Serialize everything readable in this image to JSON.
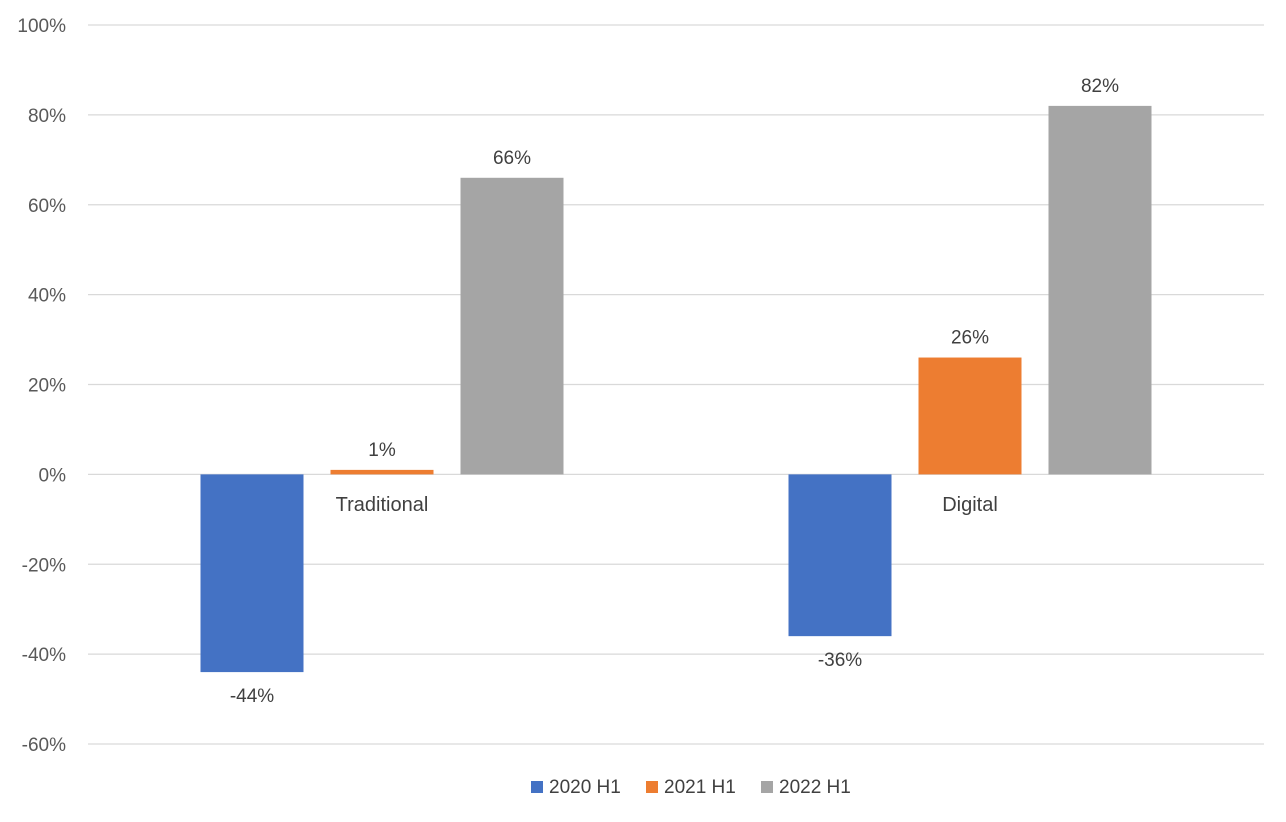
{
  "chart_data": {
    "type": "bar",
    "categories": [
      "Traditional",
      "Digital"
    ],
    "series": [
      {
        "name": "2020 H1",
        "values": [
          -44,
          -36
        ],
        "color": "#4472C4"
      },
      {
        "name": "2021 H1",
        "values": [
          1,
          26
        ],
        "color": "#ED7D31"
      },
      {
        "name": "2022 H1",
        "values": [
          66,
          82
        ],
        "color": "#A5A5A5"
      }
    ],
    "data_labels": [
      [
        "-44%",
        "-36%"
      ],
      [
        "1%",
        "26%"
      ],
      [
        "66%",
        "82%"
      ]
    ],
    "y_ticks": [
      100,
      80,
      60,
      40,
      20,
      0,
      -20,
      -40,
      -60
    ],
    "y_tick_labels": [
      "100%",
      "80%",
      "60%",
      "40%",
      "20%",
      "0%",
      "-20%",
      "-40%",
      "-60%"
    ],
    "ylim": [
      -60,
      100
    ],
    "grid": true,
    "legend_position": "bottom",
    "gridline_color": "#D9D9D9"
  }
}
